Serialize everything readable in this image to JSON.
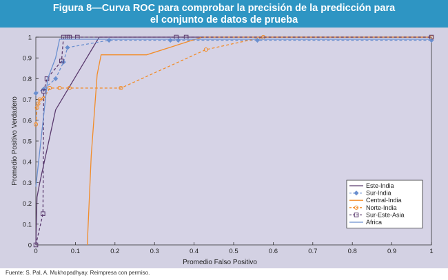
{
  "figure": {
    "title_line1": "Figura 8—Curva ROC para comprobar la precisión de la predicción para",
    "title_line2": "el conjunto de datos de prueba",
    "source": "Fuente:  S. Pal, A. Mukhopadhyay. Reimpresa con permiso.",
    "banner_color": "#2e95c3",
    "panel_color": "#d3d1e3"
  },
  "chart_data": {
    "type": "line",
    "title": "Figura 8—Curva ROC para comprobar la precisión de la predicción para el conjunto de datos de prueba",
    "xlabel": "Promedio Falso Positivo",
    "ylabel": "Promedio Positivo Verdadero",
    "xlim": [
      0,
      1
    ],
    "ylim": [
      0,
      1
    ],
    "xticks": [
      "0",
      "0.1",
      "0.2",
      "0.3",
      "0.4",
      "0.5",
      "0.6",
      "0.7",
      "0.8",
      "0.9",
      "1"
    ],
    "yticks": [
      "0",
      "0.1",
      "0.2",
      "0.3",
      "0.4",
      "0.5",
      "0.6",
      "0.7",
      "0.8",
      "0.9",
      "1"
    ],
    "grid": false,
    "legend_position": "bottom-right",
    "series": [
      {
        "name": "Este-India",
        "color": "#5a3a6e",
        "dash": "solid",
        "marker": "none",
        "x": [
          0,
          0.003,
          0.01,
          0.05,
          0.16,
          1
        ],
        "y": [
          0,
          0.23,
          0.3,
          0.65,
          1,
          1
        ]
      },
      {
        "name": "Sur-India",
        "color": "#6a8fcf",
        "dash": "dashed",
        "marker": "diamond",
        "x": [
          0,
          0.02,
          0.05,
          0.07,
          0.08,
          0.185,
          0.34,
          0.36,
          0.56,
          1
        ],
        "y": [
          0.73,
          0.75,
          0.8,
          0.88,
          0.95,
          0.985,
          0.985,
          0.985,
          0.985,
          0.985
        ]
      },
      {
        "name": "Central-India",
        "color": "#f28c28",
        "dash": "solid",
        "marker": "none",
        "x": [
          0.13,
          0.14,
          0.155,
          0.165,
          0.28,
          0.42,
          1
        ],
        "y": [
          0,
          0.43,
          0.82,
          0.915,
          0.915,
          1,
          1
        ]
      },
      {
        "name": "Norte-India",
        "color": "#f28c28",
        "dash": "dashed",
        "marker": "circle",
        "x": [
          0,
          0.003,
          0.006,
          0.01,
          0.02,
          0.035,
          0.06,
          0.085,
          0.215,
          0.43,
          0.575,
          1
        ],
        "y": [
          0.58,
          0.66,
          0.68,
          0.7,
          0.705,
          0.755,
          0.755,
          0.755,
          0.755,
          0.94,
          1,
          1
        ]
      },
      {
        "name": "Sur-Este-Asia",
        "color": "#5a3a6e",
        "dash": "dashed",
        "marker": "square",
        "x": [
          0,
          0.018,
          0.02,
          0.028,
          0.065,
          0.07,
          0.08,
          0.085,
          0.105,
          0.355,
          0.38,
          1
        ],
        "y": [
          0,
          0.15,
          0.74,
          0.8,
          0.885,
          1,
          1,
          1,
          1,
          1,
          1,
          1
        ]
      },
      {
        "name": "Africa",
        "color": "#6a8fcf",
        "dash": "solid",
        "marker": "none",
        "x": [
          0,
          0.03,
          0.05,
          0.06,
          1
        ],
        "y": [
          0.28,
          0.8,
          0.9,
          0.99,
          0.99
        ]
      }
    ]
  }
}
